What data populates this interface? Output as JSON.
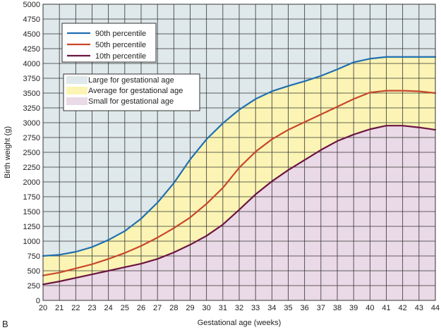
{
  "panel_label": "B",
  "chart_data": {
    "type": "line",
    "xlabel": "Gestational age (weeks)",
    "ylabel": "Birth weight (g)",
    "xlim": [
      20,
      44
    ],
    "ylim": [
      0,
      5000
    ],
    "x_ticks": [
      20,
      21,
      22,
      23,
      24,
      25,
      26,
      27,
      28,
      29,
      30,
      31,
      32,
      33,
      34,
      35,
      36,
      37,
      38,
      39,
      40,
      41,
      42,
      43,
      44
    ],
    "y_ticks": [
      0,
      250,
      500,
      750,
      1000,
      1250,
      1500,
      1750,
      2000,
      2250,
      2500,
      2750,
      3000,
      3250,
      3500,
      3750,
      4000,
      4250,
      4500,
      4750,
      5000
    ],
    "grid": true,
    "legend_lines_placement": "top-left",
    "legend_regions_placement": "upper-left",
    "series": [
      {
        "name": "90th percentile",
        "color": "#1f6fb0",
        "x": [
          20,
          21,
          22,
          23,
          24,
          25,
          26,
          27,
          28,
          29,
          30,
          31,
          32,
          33,
          34,
          35,
          36,
          37,
          38,
          39,
          40,
          41,
          42,
          43,
          44
        ],
        "values": [
          750,
          770,
          820,
          900,
          1020,
          1170,
          1380,
          1650,
          1980,
          2380,
          2720,
          2990,
          3220,
          3400,
          3530,
          3620,
          3700,
          3790,
          3900,
          4020,
          4080,
          4110,
          4110,
          4110,
          4110
        ]
      },
      {
        "name": "50th percentile",
        "color": "#c8472a",
        "x": [
          20,
          21,
          22,
          23,
          24,
          25,
          26,
          27,
          28,
          29,
          30,
          31,
          32,
          33,
          34,
          35,
          36,
          37,
          38,
          39,
          40,
          41,
          42,
          43,
          44
        ],
        "values": [
          420,
          470,
          540,
          610,
          700,
          800,
          920,
          1060,
          1220,
          1400,
          1630,
          1900,
          2240,
          2510,
          2720,
          2880,
          3010,
          3140,
          3270,
          3400,
          3510,
          3540,
          3540,
          3530,
          3500
        ]
      },
      {
        "name": "10th percentile",
        "color": "#6b1442",
        "x": [
          20,
          21,
          22,
          23,
          24,
          25,
          26,
          27,
          28,
          29,
          30,
          31,
          32,
          33,
          34,
          35,
          36,
          37,
          38,
          39,
          40,
          41,
          42,
          43,
          44
        ],
        "values": [
          270,
          320,
          380,
          440,
          500,
          560,
          620,
          700,
          810,
          940,
          1090,
          1280,
          1530,
          1790,
          2010,
          2200,
          2370,
          2540,
          2690,
          2800,
          2890,
          2950,
          2950,
          2920,
          2880
        ]
      }
    ],
    "regions": [
      {
        "name": "Large for gestational age",
        "color": "#dfe8ea"
      },
      {
        "name": "Average for gestational age",
        "color": "#fbf4b4"
      },
      {
        "name": "Small for gestational age",
        "color": "#ead9e6"
      }
    ]
  }
}
